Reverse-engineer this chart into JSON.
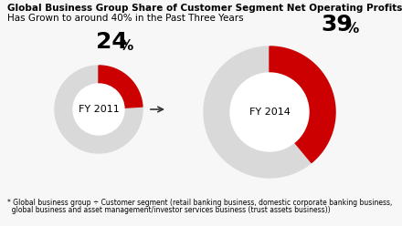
{
  "title_line1": "Global Business Group Share of Customer Segment Net Operating Profits*",
  "title_line2": "Has Grown to around 40% in the Past Three Years",
  "chart1_label": "FY 2011",
  "chart1_value": 24,
  "chart2_label": "FY 2014",
  "chart2_value": 39,
  "color_red": "#cc0000",
  "color_gray": "#d9d9d9",
  "color_bg": "#f7f7f7",
  "footnote_line1": "* Global business group ÷ Customer segment (retail banking business, domestic corporate banking business,",
  "footnote_line2": "  global business and asset management/investor services business (trust assets business))",
  "title_fontsize1": 7.5,
  "title_fontsize2": 7.5,
  "label_fontsize": 8,
  "footnote_fontsize": 5.5,
  "pct_large_fontsize": 18,
  "pct_small_fontsize": 11
}
